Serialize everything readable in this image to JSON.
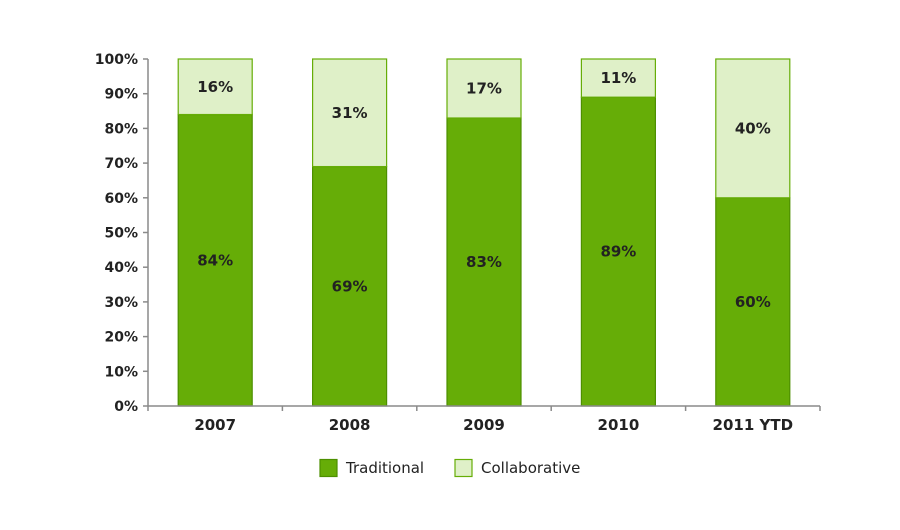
{
  "chart_data": {
    "type": "bar",
    "stacked": true,
    "categories": [
      "2007",
      "2008",
      "2009",
      "2010",
      "2011 YTD"
    ],
    "series": [
      {
        "name": "Traditional",
        "values": [
          84,
          69,
          83,
          89,
          60
        ],
        "labels": [
          "84%",
          "69%",
          "83%",
          "89%",
          "60%"
        ],
        "color": "#66ad07",
        "border": "#4d8f00"
      },
      {
        "name": "Collaborative",
        "values": [
          16,
          31,
          17,
          11,
          40
        ],
        "labels": [
          "16%",
          "31%",
          "17%",
          "11%",
          "40%"
        ],
        "color": "#dff0c8",
        "border": "#66ad07"
      }
    ],
    "ylim": [
      0,
      100
    ],
    "yticks": [
      "0%",
      "10%",
      "20%",
      "30%",
      "40%",
      "50%",
      "60%",
      "70%",
      "80%",
      "90%",
      "100%"
    ],
    "title": "",
    "xlabel": "",
    "ylabel": "",
    "grid": false,
    "legend_position": "bottom"
  }
}
